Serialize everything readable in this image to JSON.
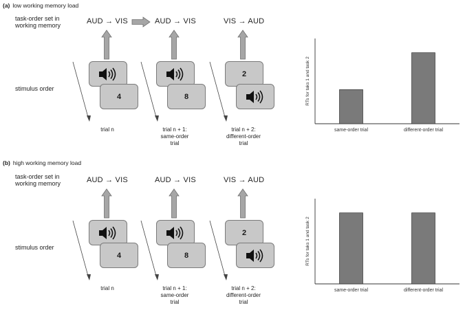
{
  "panels": [
    {
      "label": "(a)",
      "title": "low working memory load",
      "row_task_order": "task-order set in working memory",
      "row_stimulus": "stimulus order",
      "orders": [
        "AUD → VIS",
        "AUD → VIS",
        "VIS → AUD"
      ],
      "trials": [
        {
          "top": "speaker",
          "bottom": "4"
        },
        {
          "top": "speaker",
          "bottom": "8"
        },
        {
          "top": "2",
          "bottom": "speaker"
        }
      ],
      "trial_labels": [
        "trial n",
        "trial n + 1:\nsame-order\ntrial",
        "trial n + 2:\ndifferent-order\ntrial"
      ]
    },
    {
      "label": "(b)",
      "title": "high working memory load",
      "row_task_order": "task-order set in working memory",
      "row_stimulus": "stimulus order",
      "orders": [
        "AUD → VIS",
        "AUD → VIS",
        "VIS → AUD"
      ],
      "trials": [
        {
          "top": "speaker",
          "bottom": "4"
        },
        {
          "top": "speaker",
          "bottom": "8"
        },
        {
          "top": "2",
          "bottom": "speaker"
        }
      ],
      "trial_labels": [
        "trial n",
        "trial n + 1:\nsame-order\ntrial",
        "trial n + 2:\ndifferent-order\ntrial"
      ]
    }
  ],
  "chart_data": [
    {
      "type": "bar",
      "categories": [
        "same-order trial",
        "different-order trial"
      ],
      "values": [
        0.48,
        1.0
      ],
      "ylabel": "RTs for taks 1 and task 2",
      "ylim": [
        0,
        1.2
      ],
      "grid": false,
      "bar_color": "#7a7a7a"
    },
    {
      "type": "bar",
      "categories": [
        "same-order trial",
        "different-order trial"
      ],
      "values": [
        1.0,
        1.0
      ],
      "ylabel": "RTs for taks 1 and task 2",
      "ylim": [
        0,
        1.2
      ],
      "grid": false,
      "bar_color": "#7a7a7a"
    }
  ],
  "colors": {
    "card_fill": "#c8c8c8",
    "card_border": "#7a7a7a",
    "arrow_fill": "#a6a6a6",
    "bar": "#7a7a7a"
  }
}
